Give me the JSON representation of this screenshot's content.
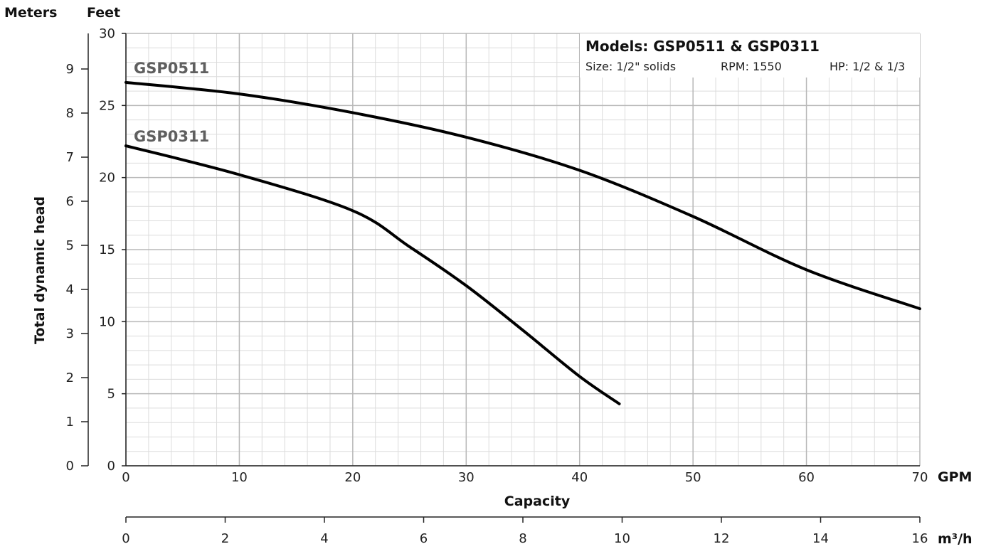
{
  "chart_data": {
    "type": "line",
    "xlabel": "Capacity",
    "ylabel": "Total dynamic head",
    "x_unit": "GPM",
    "x2_unit": "m³/h",
    "y_unit": "Feet",
    "y2_unit": "Meters",
    "xlim": [
      0,
      70
    ],
    "ylim": [
      0,
      30
    ],
    "x2lim": [
      0,
      16
    ],
    "y2lim": [
      0,
      9
    ],
    "xticks": [
      "0",
      "10",
      "20",
      "30",
      "40",
      "50",
      "60",
      "70"
    ],
    "x2ticks": [
      "0",
      "2",
      "4",
      "6",
      "8",
      "10",
      "12",
      "14",
      "16"
    ],
    "yticks": [
      "0",
      "5",
      "10",
      "15",
      "20",
      "25",
      "30"
    ],
    "y2ticks": [
      "0",
      "1",
      "2",
      "3",
      "4",
      "5",
      "6",
      "7",
      "8",
      "9"
    ],
    "grid": true,
    "info_box": {
      "title": "Models: GSP0511 & GSP0311",
      "size": "Size: 1/2\" solids",
      "rpm": "RPM: 1550",
      "hp": "HP: 1/2 & 1/3"
    },
    "series": [
      {
        "name": "GSP0511",
        "x": [
          0,
          10,
          20,
          30,
          40,
          50,
          60,
          70
        ],
        "y": [
          26.6,
          25.8,
          24.5,
          22.8,
          20.5,
          17.3,
          13.6,
          10.9
        ]
      },
      {
        "name": "GSP0311",
        "x": [
          0,
          10,
          20,
          25,
          30,
          35,
          40,
          43.5
        ],
        "y": [
          22.2,
          20.2,
          17.7,
          15.2,
          12.5,
          9.4,
          6.2,
          4.3
        ]
      }
    ]
  }
}
